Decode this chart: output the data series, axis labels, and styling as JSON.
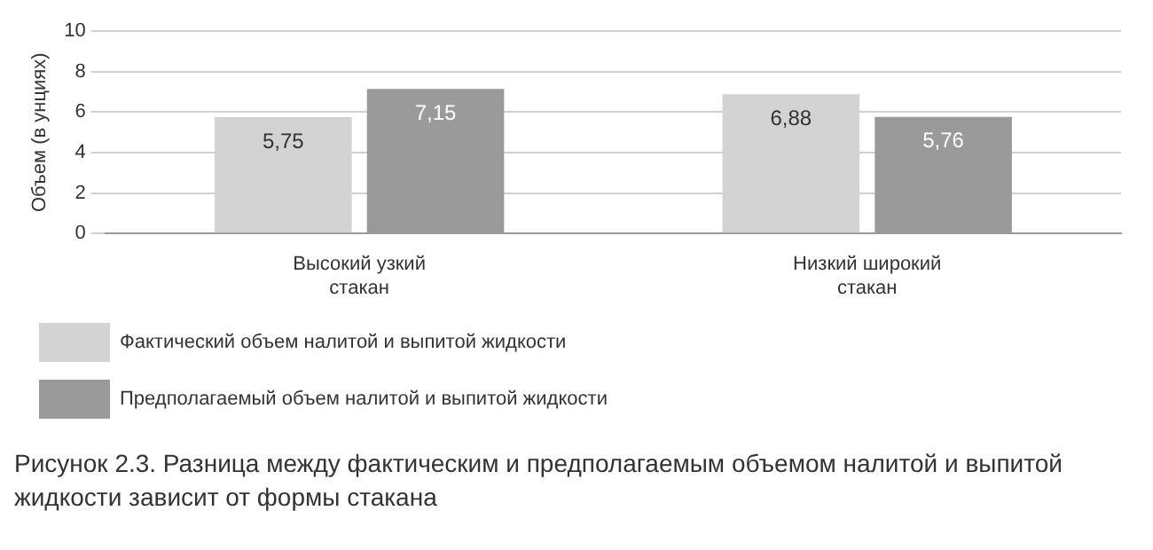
{
  "chart_data": {
    "type": "bar",
    "ylabel": "Объем (в унциях)",
    "categories": [
      "Высокий узкий стакан",
      "Низкий широкий стакан"
    ],
    "series": [
      {
        "name": "Фактический объем налитой и выпитой жидкости",
        "color": "#d3d3d3",
        "values": [
          5.75,
          6.88
        ],
        "value_labels": [
          "5,75",
          "6,88"
        ]
      },
      {
        "name": "Предполагаемый объем налитой и выпитой жидкости",
        "color": "#9a9a9a",
        "values": [
          7.15,
          5.76
        ],
        "value_labels": [
          "7,15",
          "5,76"
        ]
      }
    ],
    "ylim": [
      0,
      10
    ],
    "yticks": [
      0,
      2,
      4,
      6,
      8,
      10
    ],
    "grid": "y",
    "legend": "bottom",
    "annotations": [
      "Рисунок 2.3. Разница между фактическим и предполагаемым объемом налитой и выпитой жидкости зависит от формы стакана"
    ]
  }
}
